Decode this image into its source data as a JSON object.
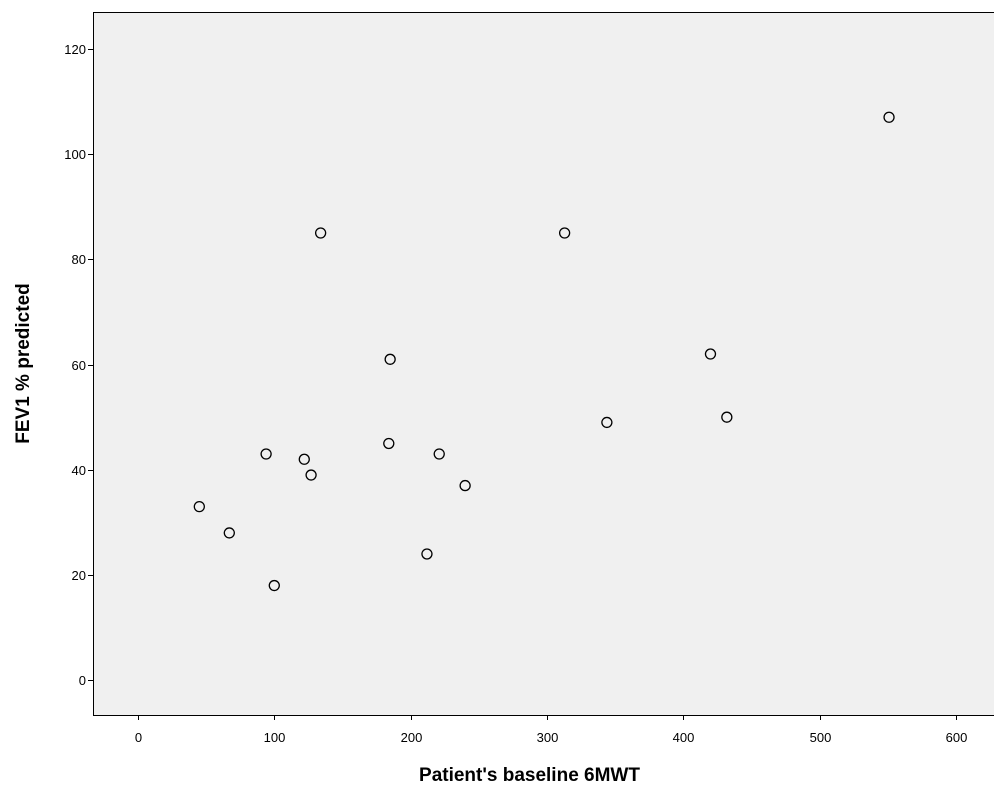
{
  "chart_data": {
    "type": "scatter",
    "title": "",
    "xlabel": "Patient's baseline 6MWT",
    "ylabel": "FEV1 % predicted",
    "xlim": [
      -33,
      628
    ],
    "ylim": [
      -6.6,
      127
    ],
    "xticks": [
      0,
      100,
      200,
      300,
      400,
      500,
      600
    ],
    "yticks": [
      0,
      20,
      40,
      60,
      80,
      100,
      120
    ],
    "grid": false,
    "legend": "none",
    "colors": {
      "plot_background": "#f0f0f0",
      "marker_stroke": "#000000",
      "axis": "#000000"
    },
    "series": [
      {
        "x": [
          45,
          67,
          94,
          100,
          122,
          127,
          134,
          184,
          185,
          212,
          221,
          240,
          313,
          344,
          420,
          432,
          551
        ],
        "y": [
          33,
          28,
          43,
          18,
          42,
          39,
          85,
          45,
          61,
          24,
          43,
          37,
          85,
          49,
          62,
          50,
          107
        ]
      }
    ]
  }
}
